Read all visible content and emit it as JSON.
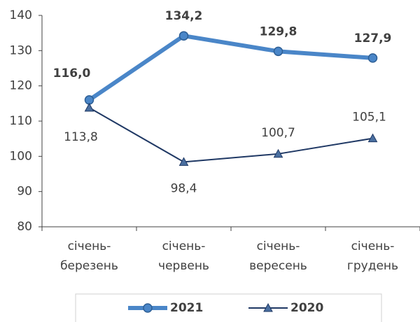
{
  "chart_data": {
    "type": "line",
    "categories": [
      "січень-березень",
      "січень-червень",
      "січень-вересень",
      "січень-грудень"
    ],
    "series": [
      {
        "name": "2021",
        "color": "#4a86c8",
        "values": [
          116.0,
          134.2,
          129.8,
          127.9
        ],
        "value_labels": [
          "116,0",
          "134,2",
          "129,8",
          "127,9"
        ]
      },
      {
        "name": "2020",
        "color": "#1f3864",
        "values": [
          113.8,
          98.4,
          100.7,
          105.1
        ],
        "value_labels": [
          "113,8",
          "98,4",
          "100,7",
          "105,1"
        ]
      }
    ],
    "ylim": [
      80,
      140
    ],
    "yticks": [
      80,
      90,
      100,
      110,
      120,
      130,
      140
    ],
    "grid": false,
    "legend": "bottom"
  }
}
